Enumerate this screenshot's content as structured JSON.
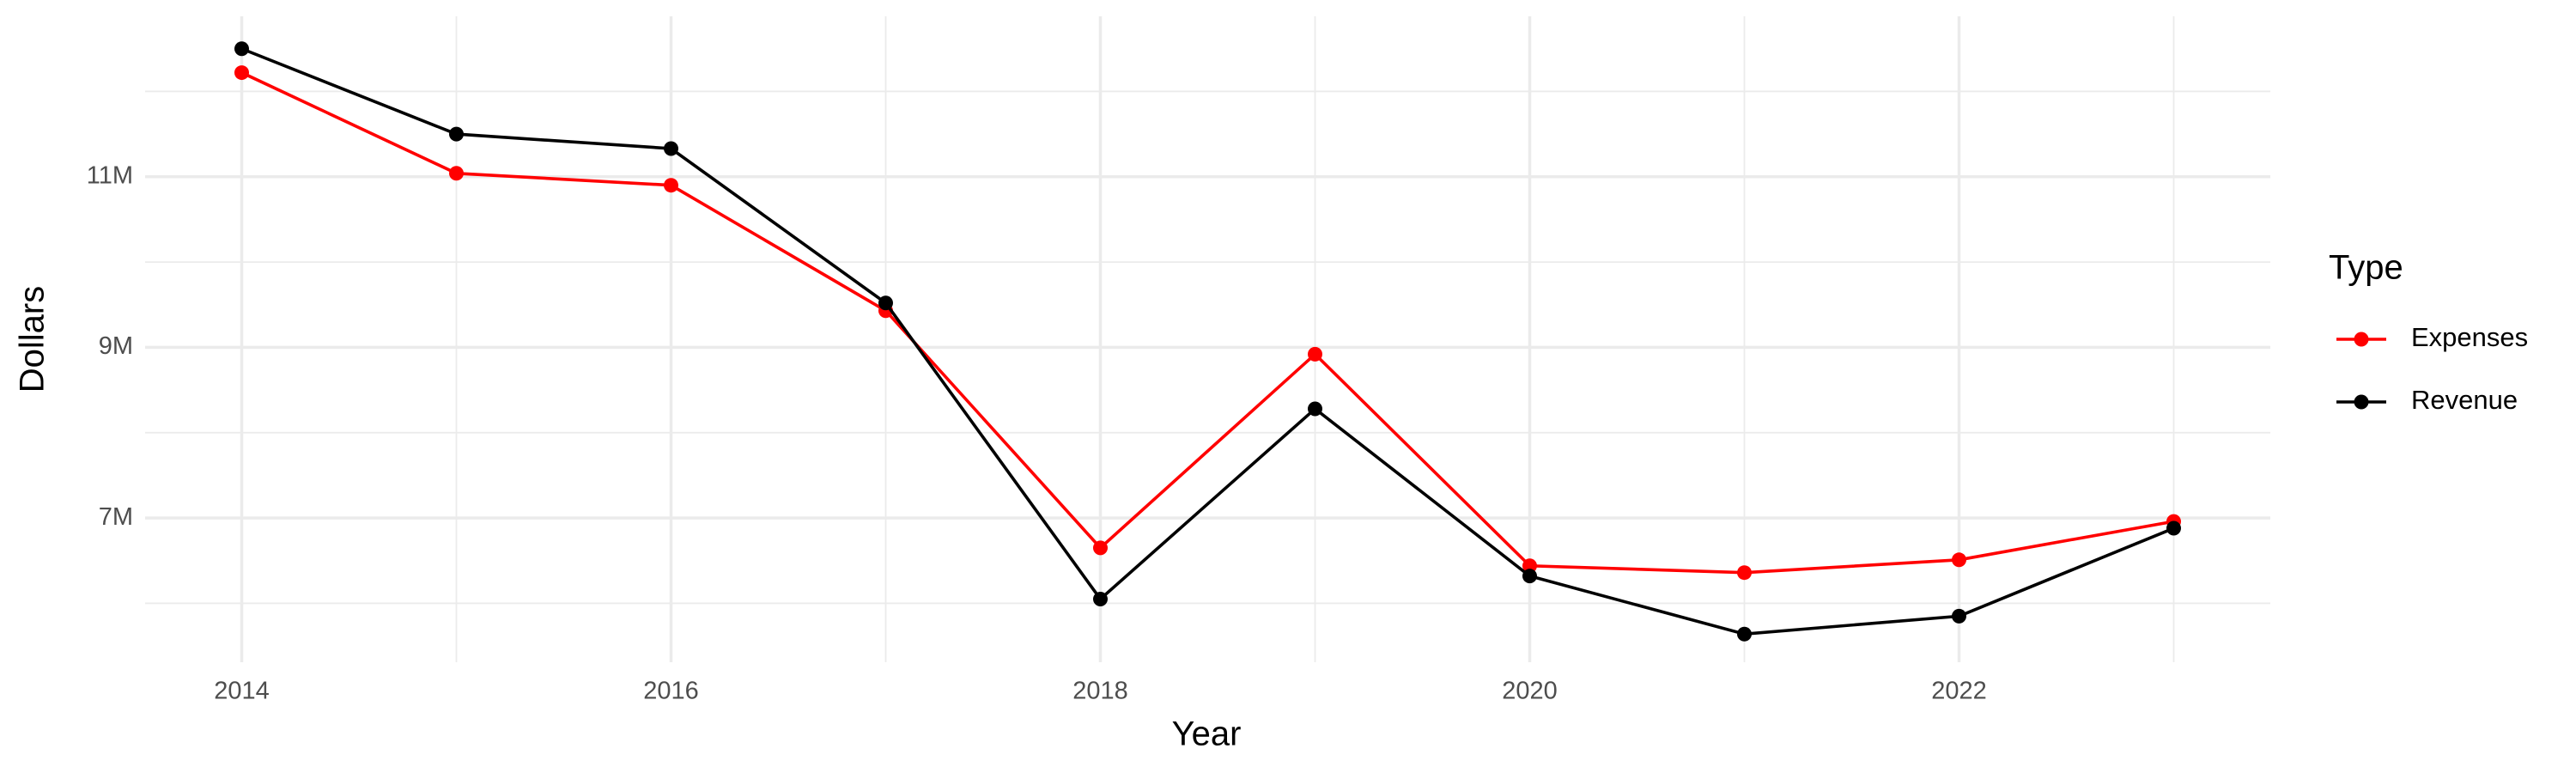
{
  "chart_data": {
    "type": "line",
    "x_label": "Year",
    "y_label": "Dollars",
    "legend_title": "Type",
    "legend_position": "right",
    "x": [
      2014,
      2015,
      2016,
      2017,
      2018,
      2019,
      2020,
      2021,
      2022,
      2023
    ],
    "series": [
      {
        "name": "Expenses",
        "color": "#ff0000",
        "values": [
          12220000,
          11040000,
          10900000,
          9430000,
          6650000,
          8920000,
          6440000,
          6360000,
          6510000,
          6960000
        ]
      },
      {
        "name": "Revenue",
        "color": "#000000",
        "values": [
          12500000,
          11500000,
          11330000,
          9520000,
          6050000,
          8280000,
          6320000,
          5640000,
          5850000,
          6880000
        ]
      }
    ],
    "xlim": [
      2013.55,
      2023.45
    ],
    "xticks": [
      2014,
      2016,
      2018,
      2020,
      2022
    ],
    "x_minor_ticks": [
      2015,
      2017,
      2019,
      2021,
      2023
    ],
    "ylim": [
      5310000,
      12880000
    ],
    "yticks": [
      {
        "value": 7000000,
        "label": "7M"
      },
      {
        "value": 9000000,
        "label": "9M"
      },
      {
        "value": 11000000,
        "label": "11M"
      }
    ],
    "y_minor_ticks": [
      6000000,
      8000000,
      10000000,
      12000000
    ],
    "grid": true
  }
}
